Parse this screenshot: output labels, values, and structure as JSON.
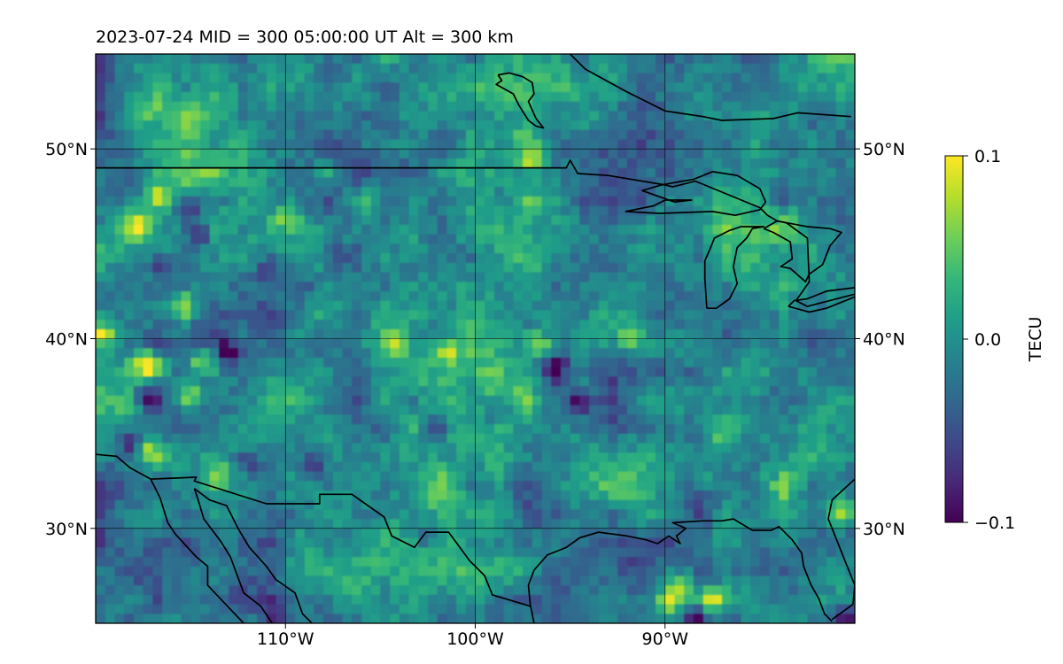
{
  "title": "2023-07-24  MID = 300    05:00:00  UT  Alt = 300 km",
  "chart_data": {
    "type": "heatmap",
    "title": "2023-07-24  MID = 300    05:00:00  UT  Alt = 300 km",
    "projection": "geographic map (lon/lat)",
    "xlim": [
      -120,
      -80
    ],
    "ylim": [
      25,
      55
    ],
    "x_ticks": [
      -110,
      -100,
      -90
    ],
    "x_tick_labels": [
      "110°W",
      "100°W",
      "90°W"
    ],
    "y_ticks": [
      30,
      40,
      50
    ],
    "y_tick_labels": [
      "30°N",
      "40°N",
      "50°N"
    ],
    "y_tick_labels_right": [
      "30°N",
      "40°N",
      "50°N"
    ],
    "grid": true,
    "colormap": "viridis",
    "colorbar": {
      "label": "TECU",
      "range": [
        -0.1,
        0.1
      ],
      "ticks": [
        0.1,
        0.0,
        -0.1
      ],
      "tick_labels": [
        "0.1",
        "0.0",
        "−0.1"
      ]
    },
    "colormap_stops": [
      "#440154",
      "#482878",
      "#3e4989",
      "#31688e",
      "#26828e",
      "#1f9e89",
      "#35b779",
      "#6ece58",
      "#b5de2b",
      "#fde725"
    ],
    "grid_resolution_deg": 0.5,
    "field_mean_tecu": -0.005,
    "hotspots": [
      {
        "lon": -116.8,
        "lat": 47.4,
        "value": 0.09
      },
      {
        "lon": -117.8,
        "lat": 46.0,
        "value": 0.08
      },
      {
        "lon": -115.3,
        "lat": 41.7,
        "value": 0.08
      },
      {
        "lon": -117.3,
        "lat": 38.6,
        "value": 0.1
      },
      {
        "lon": -114.5,
        "lat": 39.1,
        "value": 0.09
      },
      {
        "lon": -119.7,
        "lat": 40.3,
        "value": 0.09
      },
      {
        "lon": -115.0,
        "lat": 37.0,
        "value": 0.07
      },
      {
        "lon": -117.2,
        "lat": 34.0,
        "value": 0.08
      },
      {
        "lon": -113.6,
        "lat": 32.7,
        "value": 0.06
      },
      {
        "lon": -101.6,
        "lat": 39.3,
        "value": 0.07
      },
      {
        "lon": -96.7,
        "lat": 39.6,
        "value": 0.06
      },
      {
        "lon": -104.2,
        "lat": 39.9,
        "value": 0.06
      },
      {
        "lon": -89.8,
        "lat": 26.1,
        "value": 0.1
      },
      {
        "lon": -87.5,
        "lat": 26.2,
        "value": 0.1
      },
      {
        "lon": -89.0,
        "lat": 27.0,
        "value": 0.08
      },
      {
        "lon": -80.8,
        "lat": 30.9,
        "value": 0.08
      },
      {
        "lon": -91.7,
        "lat": 40.2,
        "value": 0.05
      },
      {
        "lon": -105.8,
        "lat": 47.3,
        "value": 0.05
      },
      {
        "lon": -97.0,
        "lat": 49.4,
        "value": 0.05
      },
      {
        "lon": -110.0,
        "lat": 46.5,
        "value": 0.05
      },
      {
        "lon": -117.0,
        "lat": 52.0,
        "value": 0.05
      },
      {
        "lon": -82.0,
        "lat": 55.0,
        "value": 0.05
      },
      {
        "lon": -88.0,
        "lat": 32.6,
        "value": 0.06
      },
      {
        "lon": -87.0,
        "lat": 35.0,
        "value": 0.05
      }
    ],
    "coldspots": [
      {
        "lon": -115.1,
        "lat": 47.0,
        "value": -0.1
      },
      {
        "lon": -117.1,
        "lat": 36.9,
        "value": -0.09
      },
      {
        "lon": -118.2,
        "lat": 34.7,
        "value": -0.1
      },
      {
        "lon": -113.0,
        "lat": 39.3,
        "value": -0.1
      },
      {
        "lon": -114.8,
        "lat": 39.7,
        "value": -0.08
      },
      {
        "lon": -95.8,
        "lat": 38.5,
        "value": -0.09
      },
      {
        "lon": -94.6,
        "lat": 36.6,
        "value": -0.08
      },
      {
        "lon": -102.2,
        "lat": 35.3,
        "value": -0.08
      },
      {
        "lon": -88.3,
        "lat": 25.2,
        "value": -0.1
      },
      {
        "lon": -110.5,
        "lat": 25.5,
        "value": -0.06
      },
      {
        "lon": -111.0,
        "lat": 43.6,
        "value": -0.07
      },
      {
        "lon": -107.3,
        "lat": 44.3,
        "value": -0.07
      },
      {
        "lon": -98.9,
        "lat": 36.2,
        "value": -0.07
      },
      {
        "lon": -102.6,
        "lat": 29.5,
        "value": -0.06
      },
      {
        "lon": -84.0,
        "lat": 47.5,
        "value": -0.06
      },
      {
        "lon": -112.0,
        "lat": 33.5,
        "value": -0.07
      },
      {
        "lon": -108.5,
        "lat": 33.5,
        "value": -0.07
      },
      {
        "lon": -114.5,
        "lat": 45.5,
        "value": -0.07
      },
      {
        "lon": -116.5,
        "lat": 43.8,
        "value": -0.06
      },
      {
        "lon": -80.5,
        "lat": 25.4,
        "value": -0.06
      }
    ],
    "map_lines": {
      "us_canada_border": [
        [
          -120,
          49
        ],
        [
          -95.2,
          49
        ],
        [
          -95.0,
          49.4
        ],
        [
          -94.6,
          48.7
        ],
        [
          -93.0,
          48.6
        ],
        [
          -90.0,
          48.1
        ],
        [
          -89.6,
          48.0
        ],
        [
          -88.4,
          48.3
        ],
        [
          -85.0,
          46.9
        ],
        [
          -84.6,
          46.5
        ],
        [
          -84.1,
          46.2
        ],
        [
          -83.6,
          46.1
        ],
        [
          -82.5,
          45.3
        ],
        [
          -82.4,
          43.0
        ],
        [
          -83.1,
          42.0
        ],
        [
          -82.5,
          41.7
        ],
        [
          -79.0,
          42.6
        ],
        [
          -79.0,
          43.3
        ]
      ],
      "canada_coast_north": [
        [
          -95.0,
          55
        ],
        [
          -94.2,
          54.2
        ],
        [
          -92.0,
          53.0
        ],
        [
          -90.0,
          52.0
        ],
        [
          -88.0,
          51.7
        ],
        [
          -87.0,
          51.5
        ],
        [
          -84.3,
          51.6
        ],
        [
          -83.0,
          51.9
        ],
        [
          -80.2,
          51.7
        ]
      ],
      "lake_winnipeg": [
        [
          -98.8,
          53.9
        ],
        [
          -98.2,
          54.0
        ],
        [
          -97.5,
          53.8
        ],
        [
          -97.0,
          53.5
        ],
        [
          -96.9,
          52.9
        ],
        [
          -97.2,
          52.5
        ],
        [
          -96.8,
          51.6
        ],
        [
          -96.4,
          51.1
        ],
        [
          -96.8,
          51.2
        ],
        [
          -97.2,
          51.5
        ],
        [
          -97.7,
          52.3
        ],
        [
          -98.0,
          52.9
        ],
        [
          -98.9,
          53.4
        ],
        [
          -98.6,
          53.6
        ],
        [
          -98.8,
          53.9
        ]
      ],
      "lake_superior": [
        [
          -92.1,
          46.7
        ],
        [
          -90.6,
          47.0
        ],
        [
          -90.0,
          47.3
        ],
        [
          -88.6,
          47.3
        ],
        [
          -89.5,
          47.2
        ],
        [
          -91.2,
          47.8
        ],
        [
          -90.2,
          48.1
        ],
        [
          -88.5,
          48.4
        ],
        [
          -87.5,
          48.8
        ],
        [
          -86.2,
          48.6
        ],
        [
          -85.0,
          47.9
        ],
        [
          -84.7,
          47.2
        ],
        [
          -85.0,
          46.8
        ],
        [
          -86.3,
          46.5
        ],
        [
          -87.5,
          46.7
        ],
        [
          -90.3,
          46.6
        ],
        [
          -92.1,
          46.7
        ]
      ],
      "lake_michigan": [
        [
          -87.8,
          41.6
        ],
        [
          -87.3,
          41.6
        ],
        [
          -86.6,
          42.1
        ],
        [
          -86.2,
          42.9
        ],
        [
          -86.4,
          43.8
        ],
        [
          -86.2,
          44.8
        ],
        [
          -85.7,
          45.3
        ],
        [
          -85.4,
          45.8
        ],
        [
          -84.8,
          45.9
        ],
        [
          -86.0,
          45.9
        ],
        [
          -86.6,
          45.7
        ],
        [
          -87.4,
          45.3
        ],
        [
          -87.6,
          44.8
        ],
        [
          -87.9,
          44.1
        ],
        [
          -87.9,
          43.2
        ],
        [
          -87.8,
          41.6
        ]
      ],
      "lake_huron": [
        [
          -84.8,
          45.8
        ],
        [
          -84.3,
          45.6
        ],
        [
          -83.4,
          45.1
        ],
        [
          -83.3,
          44.2
        ],
        [
          -83.9,
          43.8
        ],
        [
          -83.4,
          43.7
        ],
        [
          -82.6,
          43.0
        ],
        [
          -82.4,
          43.4
        ],
        [
          -81.7,
          43.9
        ],
        [
          -81.3,
          44.9
        ],
        [
          -80.7,
          45.6
        ],
        [
          -81.3,
          45.8
        ],
        [
          -82.5,
          45.9
        ],
        [
          -84.1,
          46.2
        ],
        [
          -84.8,
          45.8
        ]
      ],
      "lake_erie": [
        [
          -83.5,
          41.7
        ],
        [
          -82.4,
          41.4
        ],
        [
          -81.5,
          41.6
        ],
        [
          -80.0,
          42.2
        ],
        [
          -79.0,
          42.6
        ],
        [
          -79.9,
          42.7
        ],
        [
          -81.5,
          42.5
        ],
        [
          -82.5,
          42.1
        ],
        [
          -83.2,
          42.0
        ],
        [
          -83.5,
          41.7
        ]
      ],
      "gulf_coast": [
        [
          -96.9,
          25
        ],
        [
          -97.1,
          26.0
        ],
        [
          -97.2,
          27.0
        ],
        [
          -96.9,
          27.8
        ],
        [
          -96.2,
          28.6
        ],
        [
          -95.2,
          29.0
        ],
        [
          -94.5,
          29.5
        ],
        [
          -93.5,
          29.8
        ],
        [
          -92.0,
          29.6
        ],
        [
          -91.0,
          29.4
        ],
        [
          -90.4,
          29.2
        ],
        [
          -89.8,
          29.6
        ],
        [
          -89.2,
          29.2
        ],
        [
          -89.4,
          29.6
        ],
        [
          -88.9,
          30.0
        ],
        [
          -89.6,
          30.3
        ],
        [
          -88.0,
          30.4
        ],
        [
          -87.0,
          30.4
        ],
        [
          -86.4,
          30.5
        ],
        [
          -85.4,
          29.9
        ],
        [
          -84.4,
          29.9
        ],
        [
          -84.0,
          30.1
        ],
        [
          -83.3,
          29.4
        ],
        [
          -82.8,
          28.7
        ],
        [
          -82.7,
          28.0
        ],
        [
          -82.3,
          27.0
        ],
        [
          -81.9,
          26.3
        ],
        [
          -81.6,
          25.5
        ],
        [
          -81.2,
          25.1
        ]
      ],
      "us_mexico_border": [
        [
          -120,
          33.9
        ],
        [
          -118.9,
          33.8
        ],
        [
          -118.2,
          33.2
        ],
        [
          -117.1,
          32.6
        ],
        [
          -114.7,
          32.7
        ],
        [
          -114.8,
          32.5
        ],
        [
          -111.0,
          31.3
        ],
        [
          -108.2,
          31.3
        ],
        [
          -108.2,
          31.8
        ],
        [
          -106.5,
          31.8
        ],
        [
          -104.8,
          30.6
        ],
        [
          -104.4,
          29.6
        ],
        [
          -103.2,
          29.0
        ],
        [
          -102.6,
          29.8
        ],
        [
          -101.4,
          29.8
        ],
        [
          -100.3,
          28.3
        ],
        [
          -99.5,
          27.5
        ],
        [
          -99.1,
          26.5
        ],
        [
          -97.1,
          25.9
        ]
      ],
      "atlantic_coast": [
        [
          -81.2,
          25.2
        ],
        [
          -80.1,
          26.0
        ],
        [
          -80.0,
          27.0
        ],
        [
          -80.6,
          28.5
        ],
        [
          -81.0,
          29.5
        ],
        [
          -81.4,
          30.5
        ],
        [
          -81.2,
          31.5
        ],
        [
          -80.0,
          32.6
        ],
        [
          -79.0,
          33.2
        ]
      ],
      "mexico_pacific_coast": [
        [
          -117.1,
          32.6
        ],
        [
          -116.6,
          31.6
        ],
        [
          -116.2,
          30.3
        ],
        [
          -115.8,
          29.7
        ],
        [
          -114.7,
          28.5
        ],
        [
          -114.1,
          28.0
        ],
        [
          -114.1,
          27.0
        ],
        [
          -112.2,
          25.0
        ]
      ],
      "baja_gulf_coast": [
        [
          -114.8,
          32.1
        ],
        [
          -114.6,
          31.5
        ],
        [
          -114.3,
          30.5
        ],
        [
          -113.4,
          29.3
        ],
        [
          -112.9,
          28.5
        ],
        [
          -112.2,
          26.6
        ],
        [
          -111.3,
          25.9
        ],
        [
          -110.7,
          25.0
        ]
      ],
      "mexico_mainland_coast": [
        [
          -114.8,
          32.1
        ],
        [
          -114.0,
          31.5
        ],
        [
          -113.1,
          31.2
        ],
        [
          -112.5,
          30.0
        ],
        [
          -111.9,
          29.0
        ],
        [
          -111.0,
          28.0
        ],
        [
          -110.5,
          27.3
        ],
        [
          -109.5,
          26.6
        ],
        [
          -109.1,
          25.5
        ],
        [
          -108.6,
          25.0
        ]
      ]
    }
  }
}
